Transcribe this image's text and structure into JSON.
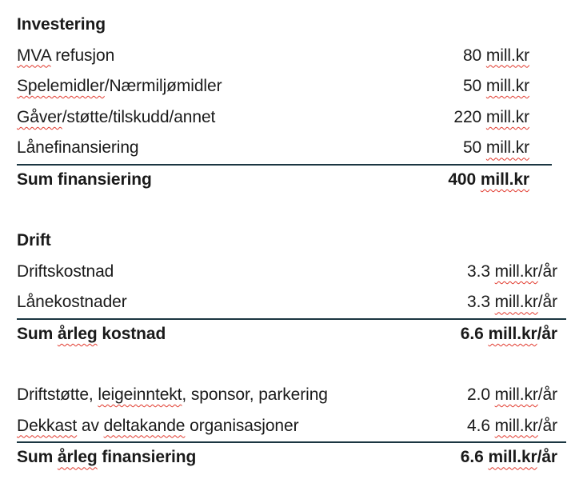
{
  "colors": {
    "text": "#1a1a1a",
    "rule_line": "#1b3641",
    "spellcheck_squiggle": "#e1392d",
    "background": "#ffffff"
  },
  "document": {
    "section_titles": [
      "Investering",
      "Drift"
    ],
    "rows": [
      {
        "type": "header",
        "section": "s1",
        "label": [
          {
            "t": "Investering"
          }
        ]
      },
      {
        "type": "data",
        "section": "s1",
        "label": [
          {
            "t": "MVA",
            "sp": true
          },
          {
            "t": " refusjon"
          }
        ],
        "value": [
          {
            "t": "80 "
          },
          {
            "t": "mill.kr",
            "sp": true
          }
        ]
      },
      {
        "type": "data",
        "section": "s1",
        "label": [
          {
            "t": "Spelemidler",
            "sp": true
          },
          {
            "t": "/Nærmiljømidler"
          }
        ],
        "value": [
          {
            "t": "50 "
          },
          {
            "t": "mill.kr",
            "sp": true
          }
        ]
      },
      {
        "type": "data",
        "section": "s1",
        "label": [
          {
            "t": "Gåver",
            "sp": true
          },
          {
            "t": "/støtte/tilskudd/annet"
          }
        ],
        "value": [
          {
            "t": "220 "
          },
          {
            "t": "mill.kr",
            "sp": true
          }
        ]
      },
      {
        "type": "data",
        "section": "s1",
        "label": [
          {
            "t": "Lånefinansiering"
          }
        ],
        "value": [
          {
            "t": "50 "
          },
          {
            "t": "mill.kr",
            "sp": true
          }
        ]
      },
      {
        "type": "sum",
        "section": "s1",
        "label": [
          {
            "t": "Sum finansiering"
          }
        ],
        "value": [
          {
            "t": "400 "
          },
          {
            "t": "mill.kr",
            "sp": true
          }
        ]
      },
      {
        "type": "spacer",
        "section": "s1"
      },
      {
        "type": "header",
        "section": "s2",
        "label": [
          {
            "t": "Drift"
          }
        ]
      },
      {
        "type": "data",
        "section": "s2",
        "label": [
          {
            "t": "Driftskostnad"
          }
        ],
        "value": [
          {
            "t": "3.3 "
          },
          {
            "t": "mill.kr",
            "sp": true
          },
          {
            "t": "/år"
          }
        ]
      },
      {
        "type": "data",
        "section": "s2",
        "label": [
          {
            "t": "Lånekostnader"
          }
        ],
        "value": [
          {
            "t": "3.3 "
          },
          {
            "t": "mill.kr",
            "sp": true
          },
          {
            "t": "/år"
          }
        ]
      },
      {
        "type": "sum",
        "section": "s2",
        "label": [
          {
            "t": "Sum "
          },
          {
            "t": "årleg",
            "sp": true
          },
          {
            "t": " kostnad"
          }
        ],
        "value": [
          {
            "t": "6.6 "
          },
          {
            "t": "mill.kr",
            "sp": true
          },
          {
            "t": "/år"
          }
        ]
      },
      {
        "type": "spacer",
        "section": "s2"
      },
      {
        "type": "data",
        "section": "s2",
        "label": [
          {
            "t": "Driftstøtte, "
          },
          {
            "t": "leigeinntekt",
            "sp": true
          },
          {
            "t": ", sponsor, parkering"
          }
        ],
        "value": [
          {
            "t": "2.0 "
          },
          {
            "t": "mill.kr",
            "sp": true
          },
          {
            "t": "/år"
          }
        ]
      },
      {
        "type": "data",
        "section": "s2",
        "label": [
          {
            "t": "Dekkast",
            "sp": true
          },
          {
            "t": " av "
          },
          {
            "t": "deltakande",
            "sp": true
          },
          {
            "t": " organisasjoner"
          }
        ],
        "value": [
          {
            "t": "4.6 "
          },
          {
            "t": "mill.kr",
            "sp": true
          },
          {
            "t": "/år"
          }
        ]
      },
      {
        "type": "sum",
        "section": "s2",
        "label": [
          {
            "t": "Sum "
          },
          {
            "t": "årleg",
            "sp": true
          },
          {
            "t": " finansiering"
          }
        ],
        "value": [
          {
            "t": "6.6 "
          },
          {
            "t": "mill.kr",
            "sp": true
          },
          {
            "t": "/år"
          }
        ]
      }
    ]
  }
}
